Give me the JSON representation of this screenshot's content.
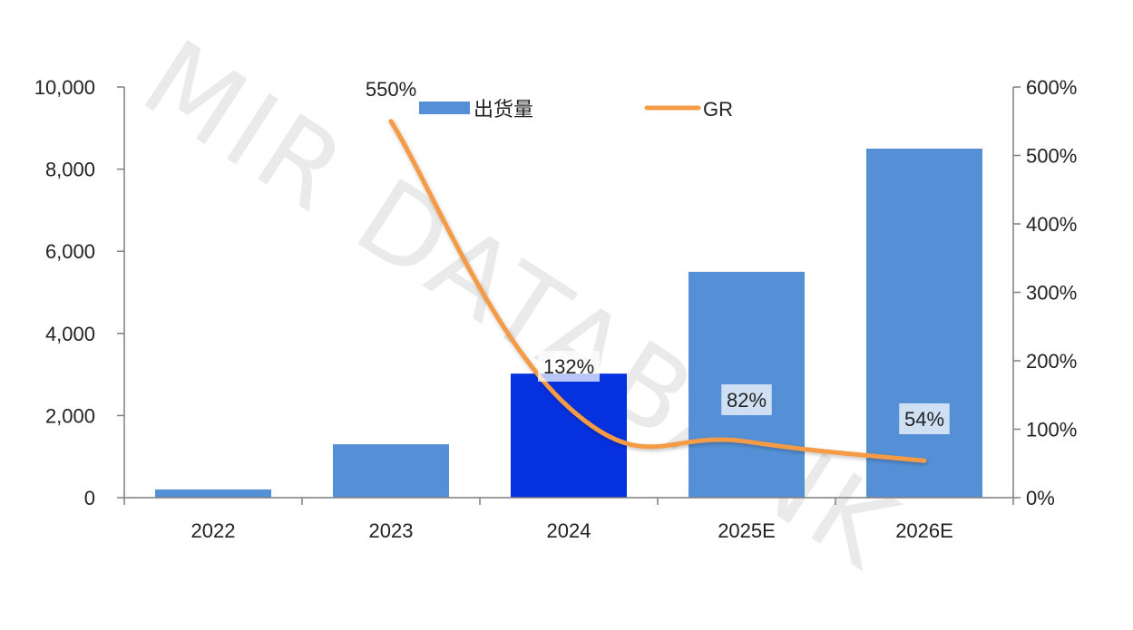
{
  "watermark": "MIR DATABANK",
  "legend": {
    "bar_label": "出货量",
    "line_label": "GR"
  },
  "colors": {
    "bar": "#5590d6",
    "bar_highlight": "#0631df",
    "line": "#f59b45",
    "axis": "#7f7f7f"
  },
  "chart_data": {
    "type": "bar",
    "categories": [
      "2022",
      "2023",
      "2024",
      "2025E",
      "2026E"
    ],
    "series": [
      {
        "name": "出货量",
        "type": "bar",
        "axis": "left",
        "values": [
          200,
          1300,
          3020,
          5500,
          8500
        ],
        "highlight_index": 2
      },
      {
        "name": "GR",
        "type": "line",
        "axis": "right",
        "values": [
          null,
          550,
          132,
          82,
          54
        ],
        "labels": [
          "",
          "550%",
          "132%",
          "82%",
          "54%"
        ]
      }
    ],
    "ylim": [
      0,
      10000
    ],
    "yticks": [
      "0",
      "2,000",
      "4,000",
      "6,000",
      "8,000",
      "10,000"
    ],
    "y2lim": [
      0,
      600
    ],
    "y2ticks": [
      "0%",
      "100%",
      "200%",
      "300%",
      "400%",
      "500%",
      "600%"
    ],
    "legend_position": "top",
    "grid": false
  }
}
